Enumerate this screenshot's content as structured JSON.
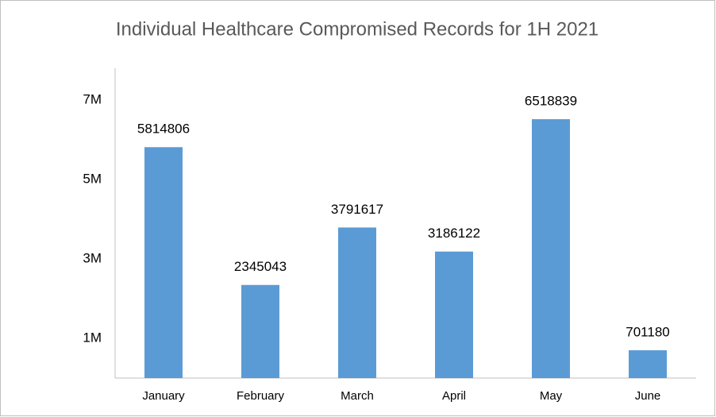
{
  "chart_data": {
    "type": "bar",
    "title": "Individual Healthcare Compromised Records for 1H 2021",
    "categories": [
      "January",
      "February",
      "March",
      "April",
      "May",
      "June"
    ],
    "values": [
      5814806,
      2345043,
      3791617,
      3186122,
      6518839,
      701180
    ],
    "color": "#5b9bd5",
    "ylim": [
      0,
      7800000
    ],
    "yticks": [
      {
        "value": 1000000,
        "label": "1M"
      },
      {
        "value": 3000000,
        "label": "3M"
      },
      {
        "value": 5000000,
        "label": "5M"
      },
      {
        "value": 7000000,
        "label": "7M"
      }
    ],
    "grid": false
  }
}
